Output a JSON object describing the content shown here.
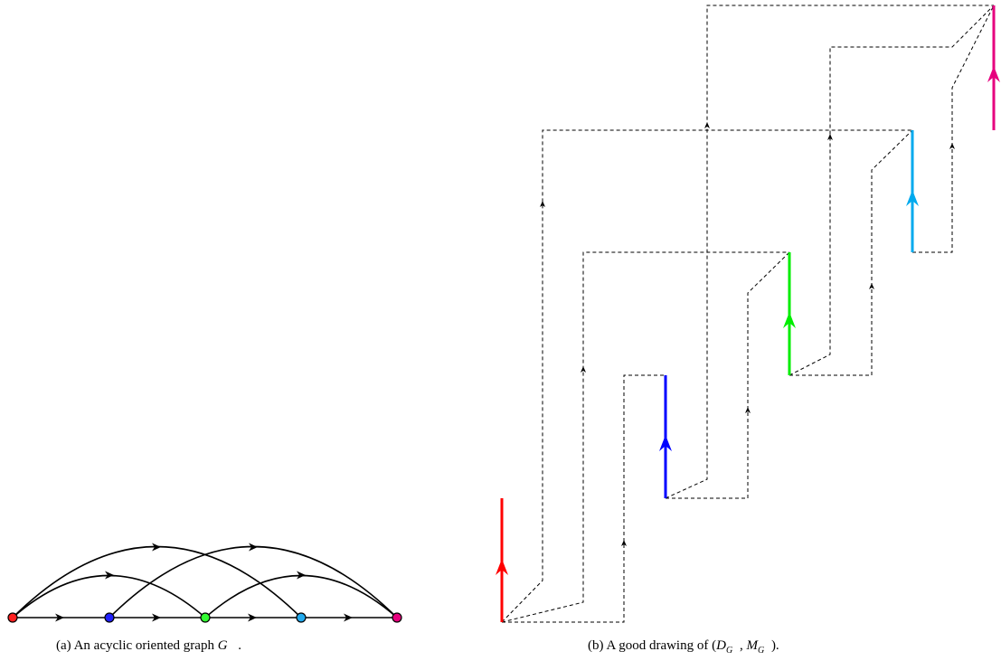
{
  "captions": {
    "a": {
      "label": "(a)",
      "text": "An acyclic oriented graph",
      "symbol": "G⃗",
      "end": "."
    },
    "b": {
      "label": "(b)",
      "text": "A good drawing of",
      "open": "(",
      "D": "D",
      "M": "M",
      "sub": "G⃗",
      "sep": ", ",
      "close": ")."
    }
  },
  "colors": {
    "v1": "#ff0000",
    "v2": "#0000ff",
    "v3": "#00ee00",
    "v4": "#00aaee",
    "v5": "#e6007e",
    "edge": "#000000"
  },
  "graph": {
    "vertices": [
      "v1",
      "v2",
      "v3",
      "v4",
      "v5"
    ],
    "edges": [
      [
        "v1",
        "v2"
      ],
      [
        "v2",
        "v3"
      ],
      [
        "v3",
        "v4"
      ],
      [
        "v4",
        "v5"
      ],
      [
        "v1",
        "v3"
      ],
      [
        "v1",
        "v4"
      ],
      [
        "v2",
        "v5"
      ],
      [
        "v3",
        "v5"
      ]
    ]
  }
}
